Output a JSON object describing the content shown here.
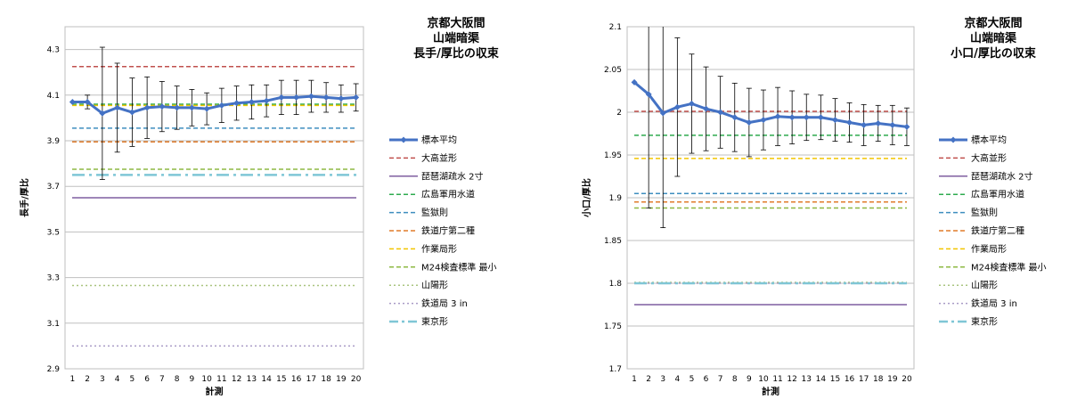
{
  "chart_data": [
    {
      "type": "line",
      "title": [
        "京都大阪間",
        "山端暗渠",
        "長手/厚比の収束"
      ],
      "xlabel": "計測",
      "ylabel": "長手/厚比",
      "ylim": [
        2.9,
        4.4
      ],
      "yticks": [
        "2.9",
        "3.1",
        "3.3",
        "3.5",
        "3.7",
        "3.9",
        "4.1",
        "4.3"
      ],
      "ytick_values": [
        2.9,
        3.1,
        3.3,
        3.5,
        3.7,
        3.9,
        4.1,
        4.3
      ],
      "grid": true,
      "legend_position": "right",
      "categories": [
        "1",
        "2",
        "3",
        "4",
        "5",
        "6",
        "7",
        "8",
        "9",
        "10",
        "11",
        "12",
        "13",
        "14",
        "15",
        "16",
        "17",
        "18",
        "19",
        "20"
      ],
      "series": [
        {
          "name": "標本平均",
          "kind": "main",
          "color": "#4472c4",
          "values": [
            4.07,
            4.07,
            4.02,
            4.045,
            4.025,
            4.045,
            4.05,
            4.045,
            4.045,
            4.04,
            4.055,
            4.065,
            4.07,
            4.075,
            4.09,
            4.09,
            4.095,
            4.09,
            4.085,
            4.09
          ],
          "error": [
            0.0,
            0.03,
            0.29,
            0.195,
            0.15,
            0.135,
            0.11,
            0.095,
            0.08,
            0.07,
            0.075,
            0.075,
            0.075,
            0.07,
            0.075,
            0.075,
            0.07,
            0.065,
            0.06,
            0.06
          ]
        },
        {
          "name": "大高並形",
          "kind": "ref",
          "style": "dash",
          "color": "#c0504d",
          "value": 4.225
        },
        {
          "name": "琵琶湖疏水 2寸",
          "kind": "ref",
          "style": "solid",
          "color": "#7f5fa0",
          "value": 3.65
        },
        {
          "name": "広島軍用水道",
          "kind": "ref",
          "style": "dash",
          "color": "#2eab4f",
          "value": 4.06
        },
        {
          "name": "監獄則",
          "kind": "ref",
          "style": "dash",
          "color": "#3e8ebf",
          "value": 3.955
        },
        {
          "name": "鉄道庁第二種",
          "kind": "ref",
          "style": "dash",
          "color": "#e07b2a",
          "value": 3.895
        },
        {
          "name": "作業局形",
          "kind": "ref",
          "style": "dash",
          "color": "#f2c500",
          "value": 4.055
        },
        {
          "name": "M24検査標準 最小",
          "kind": "ref",
          "style": "dash",
          "color": "#8db843",
          "value": 3.775
        },
        {
          "name": "山陽形",
          "kind": "ref",
          "style": "dot",
          "color": "#a9c47f",
          "value": 3.265
        },
        {
          "name": "鉄道局 3 in",
          "kind": "ref",
          "style": "dot",
          "color": "#a99bc6",
          "value": 3.0
        },
        {
          "name": "東京形",
          "kind": "ref",
          "style": "dashdot",
          "color": "#7fc6d6",
          "value": 3.75
        }
      ]
    },
    {
      "type": "line",
      "title": [
        "京都大阪間",
        "山端暗渠",
        "小口/厚比の収束"
      ],
      "xlabel": "計測",
      "ylabel": "小口/厚比",
      "ylim": [
        1.7,
        2.1
      ],
      "yticks": [
        "1.7",
        "1.75",
        "1.8",
        "1.85",
        "1.9",
        "1.95",
        "2",
        "2.05",
        "2.1"
      ],
      "ytick_values": [
        1.7,
        1.75,
        1.8,
        1.85,
        1.9,
        1.95,
        2.0,
        2.05,
        2.1
      ],
      "grid": true,
      "legend_position": "right",
      "categories": [
        "1",
        "2",
        "3",
        "4",
        "5",
        "6",
        "7",
        "8",
        "9",
        "10",
        "11",
        "12",
        "13",
        "14",
        "15",
        "16",
        "17",
        "18",
        "19",
        "20"
      ],
      "series": [
        {
          "name": "標本平均",
          "kind": "main",
          "color": "#4472c4",
          "values": [
            2.035,
            2.021,
            1.999,
            2.006,
            2.01,
            2.004,
            2.0,
            1.994,
            1.988,
            1.991,
            1.995,
            1.994,
            1.994,
            1.994,
            1.991,
            1.988,
            1.985,
            1.987,
            1.985,
            1.983
          ],
          "error": [
            0.0,
            0.133,
            0.134,
            0.081,
            0.058,
            0.049,
            0.042,
            0.04,
            0.04,
            0.035,
            0.034,
            0.031,
            0.027,
            0.026,
            0.025,
            0.023,
            0.024,
            0.021,
            0.023,
            0.022
          ]
        },
        {
          "name": "大高並形",
          "kind": "ref",
          "style": "dash",
          "color": "#c0504d",
          "value": 2.001
        },
        {
          "name": "琵琶湖疏水 2寸",
          "kind": "ref",
          "style": "solid",
          "color": "#7f5fa0",
          "value": 1.775
        },
        {
          "name": "広島軍用水道",
          "kind": "ref",
          "style": "dash",
          "color": "#2eab4f",
          "value": 1.973
        },
        {
          "name": "監獄則",
          "kind": "ref",
          "style": "dash",
          "color": "#3e8ebf",
          "value": 1.905
        },
        {
          "name": "鉄道庁第二種",
          "kind": "ref",
          "style": "dash",
          "color": "#e07b2a",
          "value": 1.895
        },
        {
          "name": "作業局形",
          "kind": "ref",
          "style": "dash",
          "color": "#f2c500",
          "value": 1.946
        },
        {
          "name": "M24検査標準 最小",
          "kind": "ref",
          "style": "dash",
          "color": "#8db843",
          "value": 1.888
        },
        {
          "name": "山陽形",
          "kind": "ref",
          "style": "dot",
          "color": "#a9c47f",
          "value": 1.801
        },
        {
          "name": "鉄道局 3 in",
          "kind": "ref",
          "style": "dot",
          "color": "#a99bc6",
          "value": 1.8
        },
        {
          "name": "東京形",
          "kind": "ref",
          "style": "dashdot",
          "color": "#7fc6d6",
          "value": 1.8
        }
      ]
    }
  ]
}
